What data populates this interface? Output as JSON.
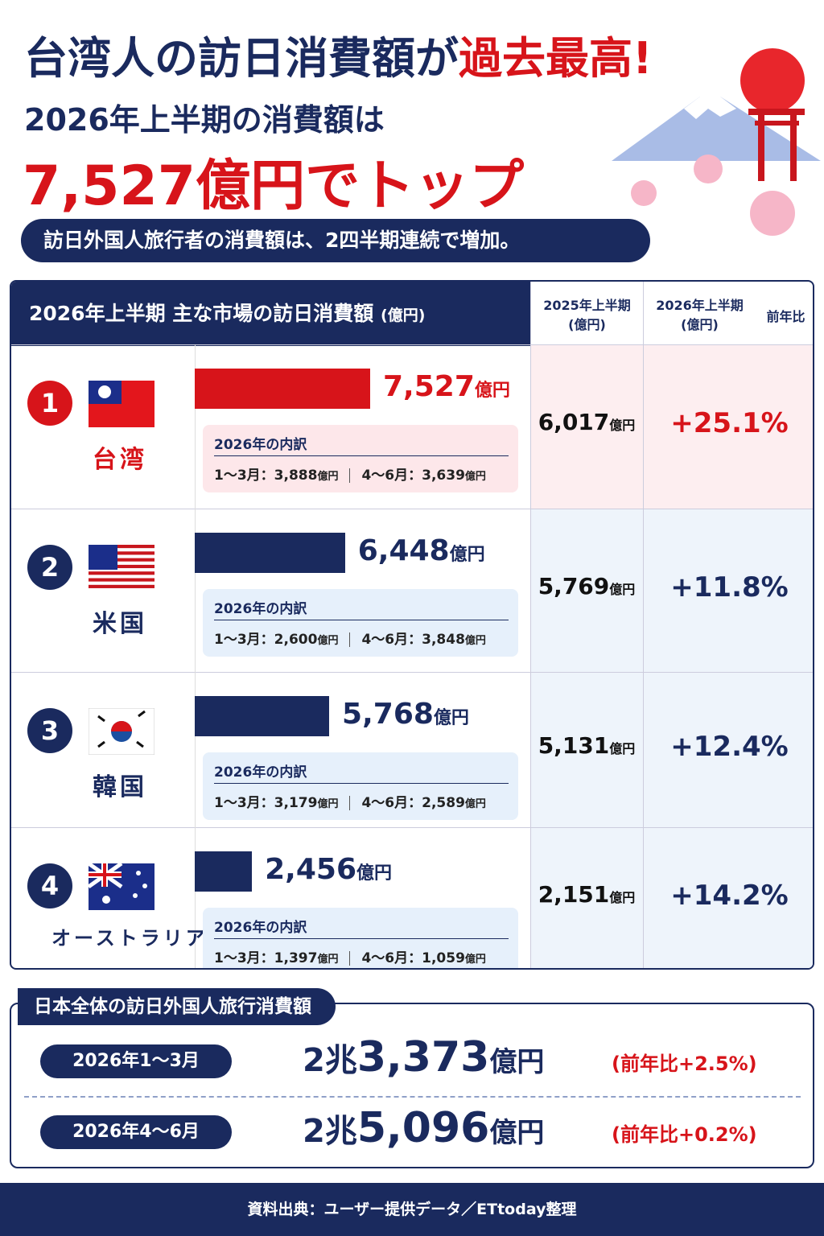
{
  "header": {
    "title_a": "台湾人の訪日消費額が",
    "title_b": "過去最高!",
    "subtitle": "2026年上半期の消費額は",
    "headline": "7,527億円でトップ",
    "banner": "訪日外国人旅行者の消費額は、2四半期連続で増加。"
  },
  "unit": "億円",
  "table": {
    "col_main": "2026年上半期 主な市場の訪日消費額",
    "col_main_unit": "(億円)",
    "col_2025": "2025年上半期",
    "col_2026": "2026年上半期",
    "col_unit": "(億円)",
    "col_yoy": "前年比",
    "breakdown_title": "2026年の内訳",
    "rows": [
      {
        "rank": "1",
        "country": "台湾",
        "color": "#d7141a",
        "value": 7527,
        "value_label": "7,527",
        "q1_label": "1～3月：",
        "q1": "3,888",
        "q2_label": "4～6月：",
        "q2": "3,639",
        "prev": "6,017",
        "yoy": "+25.1%"
      },
      {
        "rank": "2",
        "country": "米国",
        "color": "#1a2a5e",
        "value": 6448,
        "value_label": "6,448",
        "q1_label": "1～3月：",
        "q1": "2,600",
        "q2_label": "4～6月：",
        "q2": "3,848",
        "prev": "5,769",
        "yoy": "+11.8%"
      },
      {
        "rank": "3",
        "country": "韓国",
        "color": "#1a2a5e",
        "value": 5768,
        "value_label": "5,768",
        "q1_label": "1～3月：",
        "q1": "3,179",
        "q2_label": "4～6月：",
        "q2": "2,589",
        "prev": "5,131",
        "yoy": "+12.4%"
      },
      {
        "rank": "4",
        "country": "オーストラリア",
        "color": "#1a2a5e",
        "value": 2456,
        "value_label": "2,456",
        "q1_label": "1～3月：",
        "q1": "1,397",
        "q2_label": "4～6月：",
        "q2": "1,059",
        "prev": "2,151",
        "yoy": "+14.2%"
      }
    ]
  },
  "total": {
    "title": "日本全体の訪日外国人旅行消費額",
    "rows": [
      {
        "period": "2026年1～3月",
        "cho": "2兆",
        "amount": "3,373",
        "yoy": "(前年比+2.5%)"
      },
      {
        "period": "2026年4～6月",
        "cho": "2兆",
        "amount": "5,096",
        "yoy": "(前年比+0.2%)"
      }
    ]
  },
  "footer": "資料出典：ユーザー提供データ／ETtoday整理"
}
